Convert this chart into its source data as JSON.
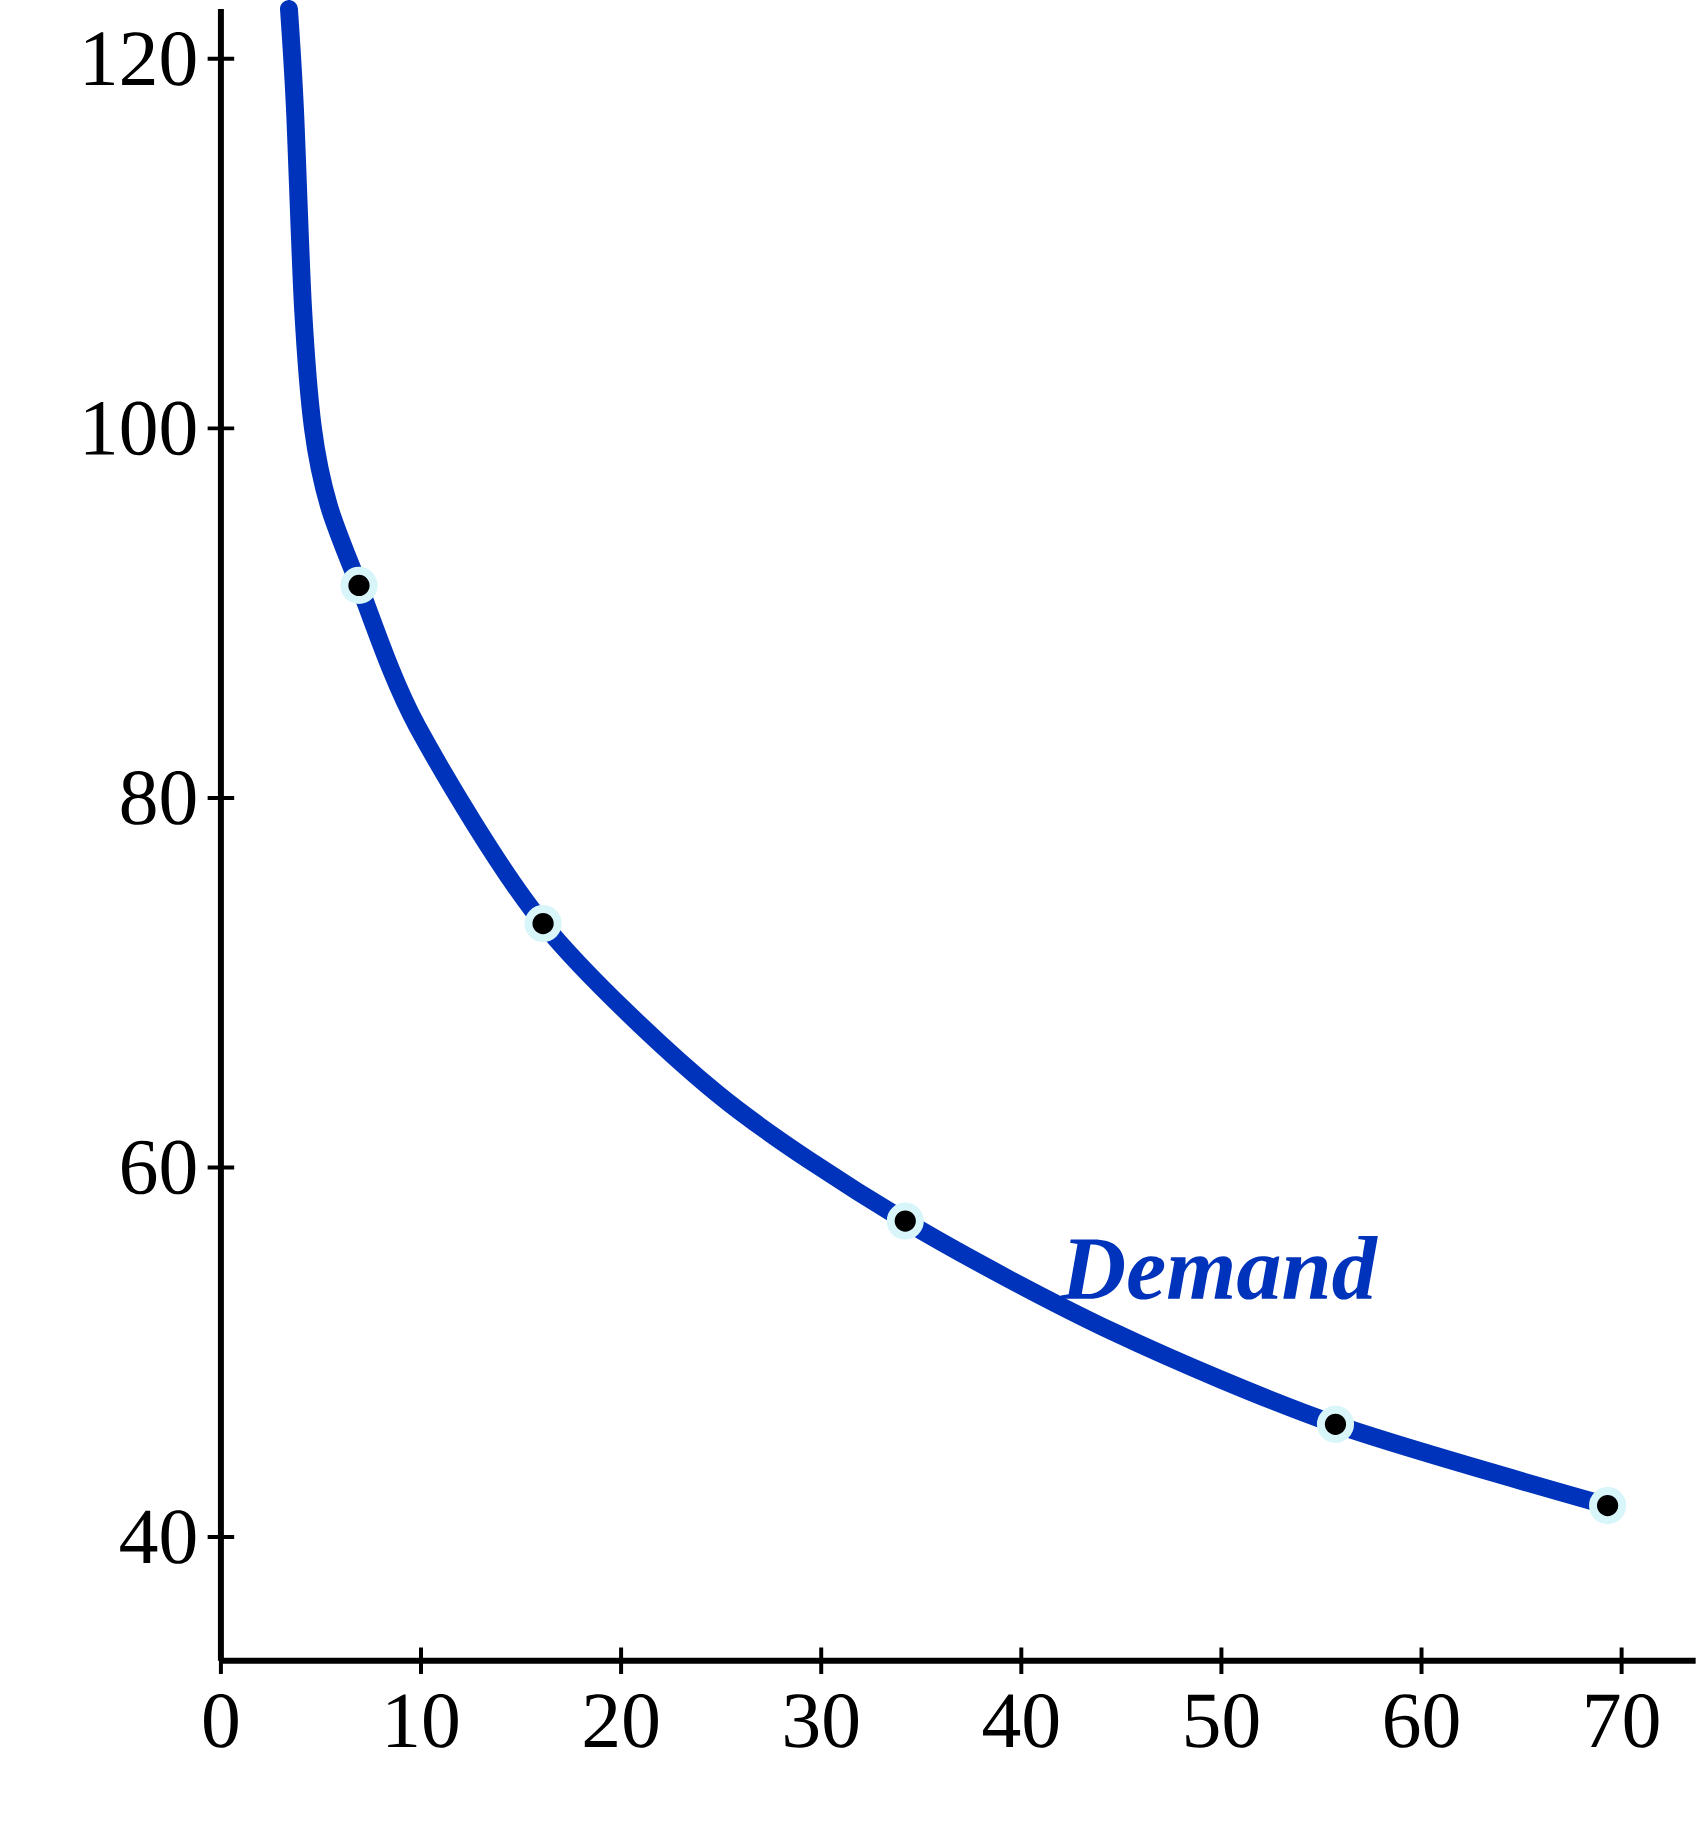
{
  "chart_data": {
    "type": "line",
    "xlim": [
      0,
      73.7
    ],
    "ylim": [
      33.3,
      122.7
    ],
    "xticks": [
      0,
      10,
      20,
      30,
      40,
      50,
      60,
      70
    ],
    "yticks": [
      40,
      60,
      80,
      100,
      120
    ],
    "grid": false,
    "series": [
      {
        "name": "Demand",
        "color": "#0033bb",
        "marker": "none",
        "x": [
          3.4,
          3.7,
          4.1,
          4.6,
          5.4,
          6.9,
          9.8,
          16.1,
          24.8,
          34.2,
          44.6,
          55.7,
          69.3
        ],
        "values": [
          122.7,
          117.3,
          106.6,
          100,
          95.8,
          91.5,
          83.9,
          73.2,
          64,
          57.1,
          51.1,
          46.1,
          41.7
        ]
      },
      {
        "type": "scatter",
        "color": "#000000",
        "marker": "circle",
        "x": [
          6.9,
          16.1,
          34.2,
          55.7,
          69.3
        ],
        "values": [
          91.5,
          73.2,
          57.1,
          46.1,
          41.7
        ]
      }
    ]
  }
}
